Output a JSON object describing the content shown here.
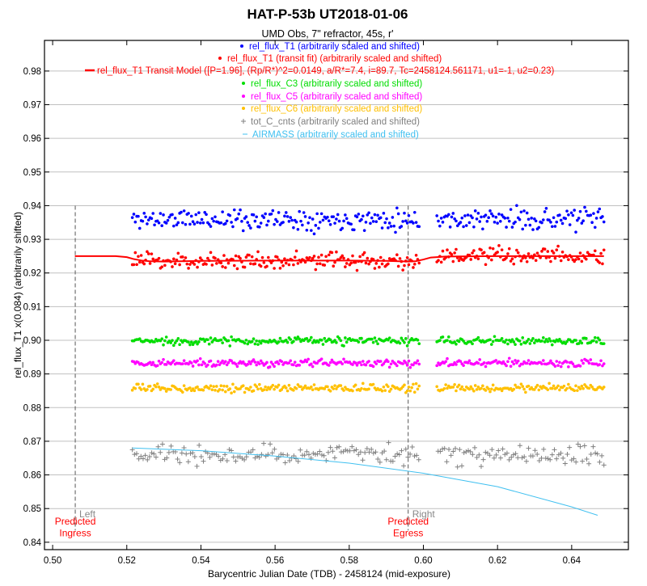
{
  "chart_data": {
    "type": "scatter",
    "title": "HAT-P-53b UT2018-01-06",
    "subtitle": "UMD Obs, 7\" refractor, 45s, r'",
    "xlabel": "Barycentric Julian Date (TDB) - 2458124 (mid-exposure)",
    "ylabel": "rel_flux_T1 x(0.084) (arbitrarily shifted)",
    "xlim": [
      0.4978,
      0.6553
    ],
    "ylim": [
      0.8378,
      0.9891
    ],
    "xticks": [
      "0.50",
      "0.52",
      "0.54",
      "0.56",
      "0.58",
      "0.60",
      "0.62",
      "0.64"
    ],
    "yticks": [
      "0.84",
      "0.85",
      "0.86",
      "0.87",
      "0.88",
      "0.89",
      "0.90",
      "0.91",
      "0.92",
      "0.93",
      "0.94",
      "0.95",
      "0.96",
      "0.97",
      "0.98"
    ],
    "grid": "horizontal",
    "legend_placement": "top-center",
    "legend": [
      {
        "marker": "dot",
        "label": "rel_flux_T1 (arbitrarily scaled and shifted)",
        "color": "#0000ff"
      },
      {
        "marker": "dot",
        "label": "rel_flux_T1 (transit fit) (arbitrarily scaled and shifted)",
        "color": "#ff0000"
      },
      {
        "marker": "line",
        "label": "rel_flux_T1 Transit Model ([P=1.96], (Rp/R*)^2=0.0149, a/R*=7.4, i=89.7, Tc=2458124.561171, u1=-1, u2=0.23)",
        "color": "#ff0000"
      },
      {
        "marker": "dot",
        "label": "rel_flux_C3 (arbitrarily scaled and shifted)",
        "color": "#00dd00"
      },
      {
        "marker": "dot",
        "label": "rel_flux_C5 (arbitrarily scaled and shifted)",
        "color": "#ff00ff"
      },
      {
        "marker": "dot",
        "label": "rel_flux_C6 (arbitrarily scaled and shifted)",
        "color": "#ffc000"
      },
      {
        "marker": "plus",
        "label": "tot_C_cnts (arbitrarily scaled and shifted)",
        "color": "#808080"
      },
      {
        "marker": "dash",
        "label": "AIRMASS (arbitrarily scaled and shifted)",
        "color": "#40c0f0"
      }
    ],
    "scatter_series": [
      {
        "name": "rel_flux_T1",
        "color": "#0000ff",
        "marker": "dot",
        "x_range": [
          0.5215,
          0.6487
        ],
        "n": 320,
        "mean": 0.936,
        "scatter": 0.0022,
        "seed": 11
      },
      {
        "name": "rel_flux_T1 (transit fit)",
        "color": "#ff0000",
        "marker": "dot",
        "x_range": [
          0.5215,
          0.6487
        ],
        "n": 320,
        "mean_follows_model": true,
        "model_offset": 0.0,
        "scatter": 0.0018,
        "seed": 23
      },
      {
        "name": "rel_flux_C3",
        "color": "#00dd00",
        "marker": "dot",
        "x_range": [
          0.5215,
          0.6487
        ],
        "n": 320,
        "mean": 0.8998,
        "scatter": 0.0008,
        "seed": 37
      },
      {
        "name": "rel_flux_C5",
        "color": "#ff00ff",
        "marker": "dot",
        "x_range": [
          0.5215,
          0.6487
        ],
        "n": 320,
        "mean": 0.8932,
        "scatter": 0.0008,
        "seed": 41
      },
      {
        "name": "rel_flux_C6",
        "color": "#ffc000",
        "marker": "dot",
        "x_range": [
          0.5215,
          0.6487
        ],
        "n": 320,
        "mean": 0.8858,
        "scatter": 0.0008,
        "seed": 53
      },
      {
        "name": "tot_C_cnts",
        "color": "#808080",
        "marker": "plus",
        "x_range": [
          0.5215,
          0.6487
        ],
        "n": 220,
        "mean": 0.866,
        "scatter": 0.0022,
        "seed": 67
      }
    ],
    "gap": [
      0.599,
      0.6035
    ],
    "transit_model": {
      "name": "rel_flux_T1 Transit Model",
      "color": "#ff0000",
      "x": [
        0.506,
        0.517,
        0.52,
        0.522,
        0.524,
        0.526,
        0.53,
        0.54,
        0.56,
        0.58,
        0.59,
        0.596,
        0.598,
        0.6,
        0.602,
        0.606,
        0.62,
        0.6487
      ],
      "y": [
        0.925,
        0.925,
        0.9247,
        0.9241,
        0.9237,
        0.9235,
        0.9234,
        0.9236,
        0.9237,
        0.9237,
        0.9236,
        0.9234,
        0.9235,
        0.924,
        0.9246,
        0.9249,
        0.925,
        0.925
      ]
    },
    "airmass": {
      "name": "AIRMASS",
      "color": "#40c0f0",
      "x": [
        0.5215,
        0.54,
        0.56,
        0.58,
        0.6,
        0.62,
        0.64,
        0.647
      ],
      "y": [
        0.868,
        0.8672,
        0.8656,
        0.8635,
        0.8605,
        0.8565,
        0.8505,
        0.848
      ]
    },
    "annotations": [
      {
        "x": 0.5061,
        "label_line1": "Predicted",
        "label_line2": "Ingress",
        "underlabel": "Left",
        "color": "#ff0000"
      },
      {
        "x": 0.5959,
        "label_line1": "Predicted",
        "label_line2": "Egress",
        "underlabel": "Right",
        "color": "#ff0000"
      }
    ]
  }
}
